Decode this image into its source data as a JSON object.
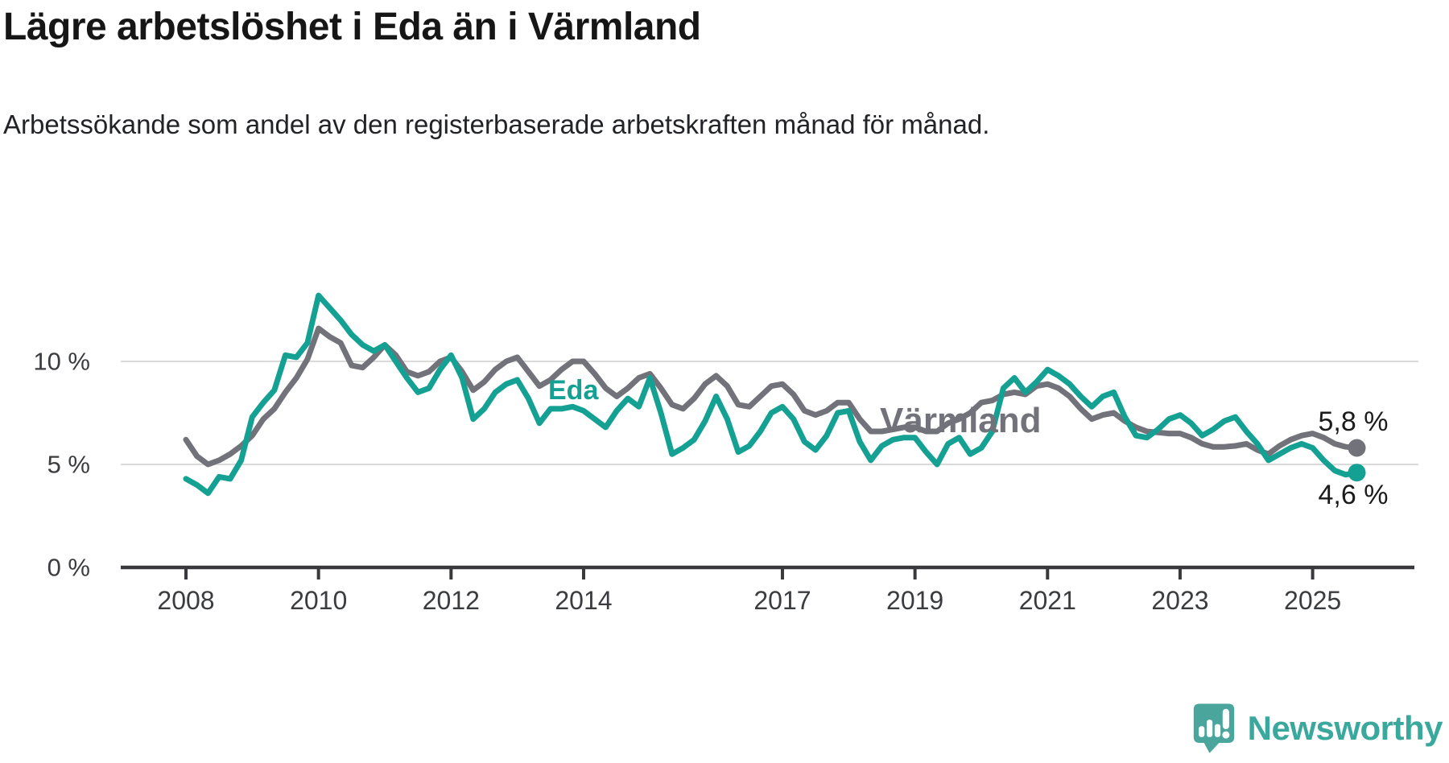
{
  "header": {
    "title": "Lägre arbetslöshet i Eda än i Värmland",
    "subtitle": "Arbetssökande som andel av den registerbaserade arbetskraften månad för månad."
  },
  "chart_data": {
    "type": "line",
    "title": "Lägre arbetslöshet i Eda än i Värmland",
    "xlabel": "",
    "ylabel": "",
    "y_unit": "%",
    "ylim": [
      0,
      14
    ],
    "grid": "horizontal gridlines at 5 % and 10 %",
    "legend_position": "inline labels on lines",
    "x_start_year": 2008,
    "samples_per_year": 6,
    "x_end": "Aug 2025",
    "yticks": [
      {
        "value": 0,
        "label": "0 %"
      },
      {
        "value": 5,
        "label": "5 %"
      },
      {
        "value": 10,
        "label": "10 %"
      }
    ],
    "xticks": [
      "2008",
      "2010",
      "2012",
      "2014",
      "2017",
      "2019",
      "2021",
      "2023",
      "2025"
    ],
    "series": [
      {
        "name": "Värmland",
        "color": "#72727A",
        "end_label": "5,8 %",
        "end_value": 5.8,
        "values": [
          6.2,
          5.4,
          5.0,
          5.2,
          5.5,
          5.9,
          6.4,
          7.2,
          7.7,
          8.5,
          9.2,
          10.1,
          11.6,
          11.2,
          10.9,
          9.8,
          9.7,
          10.2,
          10.8,
          10.3,
          9.5,
          9.3,
          9.5,
          10.0,
          10.2,
          9.5,
          8.6,
          9.0,
          9.6,
          10.0,
          10.2,
          9.5,
          8.8,
          9.1,
          9.6,
          10.0,
          10.0,
          9.4,
          8.7,
          8.3,
          8.7,
          9.2,
          9.4,
          8.7,
          7.9,
          7.7,
          8.2,
          8.9,
          9.3,
          8.8,
          7.9,
          7.8,
          8.3,
          8.8,
          8.9,
          8.4,
          7.6,
          7.4,
          7.6,
          8.0,
          8.0,
          7.2,
          6.6,
          6.6,
          6.7,
          6.8,
          6.8,
          6.6,
          6.6,
          7.0,
          7.2,
          7.5,
          8.0,
          8.1,
          8.4,
          8.5,
          8.4,
          8.8,
          8.9,
          8.7,
          8.3,
          7.7,
          7.2,
          7.4,
          7.5,
          7.1,
          6.8,
          6.6,
          6.55,
          6.5,
          6.5,
          6.3,
          6.0,
          5.85,
          5.85,
          5.9,
          6.0,
          5.7,
          5.5,
          5.9,
          6.2,
          6.4,
          6.5,
          6.3,
          6.0,
          5.85,
          5.8
        ]
      },
      {
        "name": "Eda",
        "color": "#14A193",
        "end_label": "4,6 %",
        "end_value": 4.6,
        "values": [
          4.3,
          4.0,
          3.6,
          4.4,
          4.3,
          5.2,
          7.3,
          8.0,
          8.6,
          10.3,
          10.2,
          10.9,
          13.2,
          12.6,
          12.0,
          11.3,
          10.8,
          10.5,
          10.8,
          10.0,
          9.2,
          8.5,
          8.7,
          9.6,
          10.3,
          9.2,
          7.2,
          7.7,
          8.5,
          8.9,
          9.1,
          8.2,
          7.0,
          7.7,
          7.7,
          7.8,
          7.6,
          7.2,
          6.8,
          7.6,
          8.2,
          7.8,
          9.2,
          7.5,
          5.5,
          5.8,
          6.2,
          7.1,
          8.3,
          7.2,
          5.6,
          5.9,
          6.6,
          7.5,
          7.8,
          7.2,
          6.1,
          5.7,
          6.4,
          7.5,
          7.6,
          6.1,
          5.2,
          5.9,
          6.2,
          6.3,
          6.3,
          5.6,
          5.0,
          6.0,
          6.3,
          5.5,
          5.8,
          6.6,
          8.7,
          9.2,
          8.5,
          9.0,
          9.6,
          9.3,
          8.9,
          8.3,
          7.8,
          8.3,
          8.5,
          7.3,
          6.4,
          6.3,
          6.7,
          7.2,
          7.4,
          7.0,
          6.4,
          6.7,
          7.1,
          7.3,
          6.6,
          6.0,
          5.2,
          5.5,
          5.8,
          6.0,
          5.8,
          5.2,
          4.7,
          4.5,
          4.6
        ]
      }
    ]
  },
  "logo": {
    "name": "Newsworthy",
    "color": "#3BA89E",
    "icon": "speech-bubble-bar-chart-exclamation-icon"
  }
}
